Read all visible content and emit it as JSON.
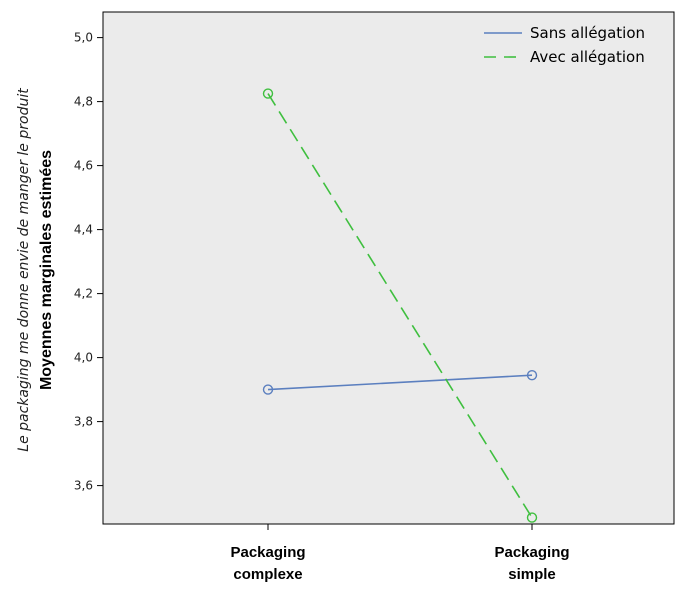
{
  "chart_data": {
    "type": "line",
    "categories": [
      "Packaging complexe",
      "Packaging simple"
    ],
    "category_lines": [
      [
        "Packaging",
        "complexe"
      ],
      [
        "Packaging",
        "simple"
      ]
    ],
    "series": [
      {
        "name": "Sans allégation",
        "values": [
          3.9,
          3.945
        ],
        "color": "#5b7fbf",
        "dash": "solid"
      },
      {
        "name": "Avec allégation",
        "values": [
          4.825,
          3.5
        ],
        "color": "#3fbf3f",
        "dash": "dashed"
      }
    ],
    "ylabel_lines": [
      "Le packaging me donne envie de manger le produit",
      "Moyennes marginales estimées"
    ],
    "ylim": [
      3.48,
      5.08
    ],
    "yticks": [
      3.6,
      3.8,
      4.0,
      4.2,
      4.4,
      4.6,
      4.8,
      5.0
    ],
    "ytick_labels": [
      "3,6",
      "3,8",
      "4,0",
      "4,2",
      "4,4",
      "4,6",
      "4,8",
      "5,0"
    ],
    "grid": false,
    "legend_position": "top-right",
    "background": "#ebebeb"
  }
}
